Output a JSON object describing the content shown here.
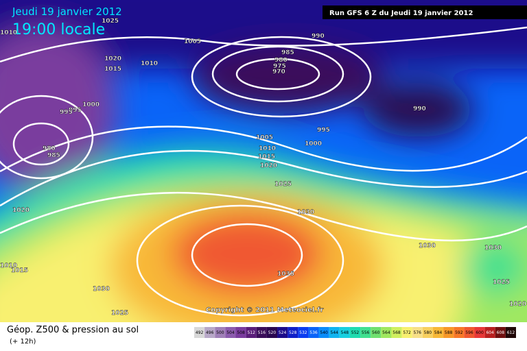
{
  "header": {
    "date": "Jeudi 19 janvier 2012",
    "time": "19:00 locale",
    "run": "Run GFS 6 Z du Jeudi 19 janvier 2012"
  },
  "copyright": "Copyright © 2011 Meteociel.fr",
  "isobar_labels": [
    1025,
    1010,
    1005,
    990,
    985,
    980,
    975,
    970,
    1020,
    1015,
    1010,
    1000,
    995,
    995,
    990,
    980,
    985,
    995,
    1005,
    1000,
    1010,
    1015,
    1020,
    1025,
    1020,
    1030,
    1030,
    1030,
    1010,
    1015,
    1035,
    1030,
    1025,
    1020,
    1025
  ],
  "legend": {
    "title": "Géop. Z500 & pression au sol",
    "lead": "(+ 12h)",
    "scale": [
      492,
      496,
      500,
      504,
      508,
      512,
      516,
      520,
      524,
      528,
      532,
      536,
      540,
      544,
      548,
      552,
      556,
      560,
      564,
      568,
      572,
      576,
      580,
      584,
      588,
      592,
      596,
      600,
      604,
      608,
      612
    ],
    "colors": [
      "#d8d8d8",
      "#b8a8c8",
      "#a080b8",
      "#8c5cae",
      "#7a3c9e",
      "#5a1e7a",
      "#3a0e5a",
      "#2a0850",
      "#1c0c8a",
      "#1020c8",
      "#0a3cf0",
      "#0a64f8",
      "#0a8cfa",
      "#10b4f0",
      "#18d0e0",
      "#20dcb0",
      "#40e090",
      "#70e070",
      "#a0e860",
      "#d0f060",
      "#f8f070",
      "#f8e088",
      "#f8d060",
      "#f8b838",
      "#f89828",
      "#f87828",
      "#f05830",
      "#e83838",
      "#b82020",
      "#701010",
      "#200808"
    ]
  }
}
